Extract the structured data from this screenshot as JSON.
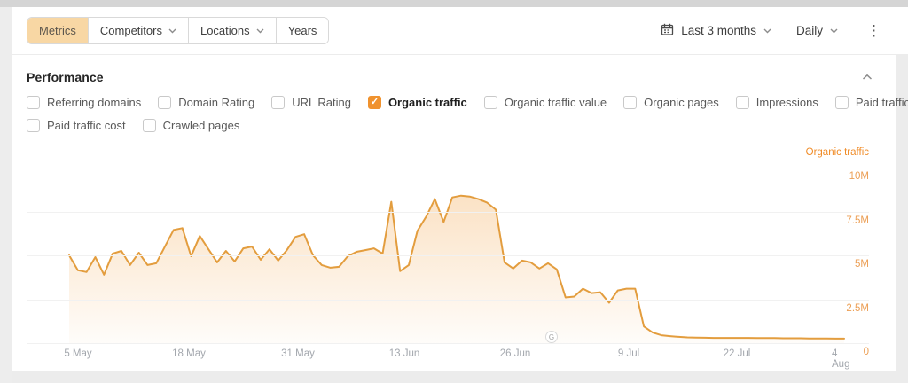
{
  "toolbar": {
    "tabs": [
      {
        "label": "Metrics",
        "active": true,
        "dropdown": false
      },
      {
        "label": "Competitors",
        "active": false,
        "dropdown": true
      },
      {
        "label": "Locations",
        "active": false,
        "dropdown": true
      },
      {
        "label": "Years",
        "active": false,
        "dropdown": false
      }
    ],
    "date_range_label": "Last 3 months",
    "granularity_label": "Daily"
  },
  "performance": {
    "title": "Performance",
    "metrics_rows": [
      [
        {
          "label": "Referring domains",
          "checked": false
        },
        {
          "label": "Domain Rating",
          "checked": false
        },
        {
          "label": "URL Rating",
          "checked": false
        },
        {
          "label": "Organic traffic",
          "checked": true
        },
        {
          "label": "Organic traffic value",
          "checked": false
        },
        {
          "label": "Organic pages",
          "checked": false
        },
        {
          "label": "Impressions",
          "checked": false
        },
        {
          "label": "Paid traffic",
          "checked": false
        }
      ],
      [
        {
          "label": "Paid traffic cost",
          "checked": false
        },
        {
          "label": "Crawled pages",
          "checked": false
        }
      ]
    ]
  },
  "chart_data": {
    "type": "area",
    "title": "Organic traffic",
    "legend": "Organic traffic",
    "unit": "millions",
    "ylim": [
      0,
      10
    ],
    "y_tick_labels": [
      "10M",
      "7.5M",
      "5M",
      "2.5M",
      "0"
    ],
    "x_tick_labels": [
      "5 May",
      "18 May",
      "31 May",
      "13 Jun",
      "26 Jun",
      "9 Jul",
      "22 Jul",
      "4 Aug"
    ],
    "x_tick_pos": [
      58,
      183,
      306,
      426,
      551,
      679,
      801,
      922
    ],
    "grid": "horizontal",
    "legend_position": "top-right",
    "annotation": {
      "symbol": "G",
      "meaning": "google-update-marker",
      "near_date": "29 Jun"
    },
    "values_millions": [
      5.0,
      4.15,
      4.05,
      4.9,
      3.9,
      5.1,
      5.25,
      4.45,
      5.15,
      4.45,
      4.55,
      5.5,
      6.45,
      6.55,
      4.95,
      6.1,
      5.35,
      4.6,
      5.25,
      4.65,
      5.4,
      5.5,
      4.75,
      5.35,
      4.7,
      5.3,
      6.05,
      6.2,
      5.0,
      4.45,
      4.3,
      4.35,
      4.95,
      5.2,
      5.3,
      5.4,
      5.1,
      8.05,
      4.1,
      4.45,
      6.4,
      7.2,
      8.2,
      6.9,
      8.3,
      8.4,
      8.35,
      8.2,
      8.0,
      7.6,
      4.6,
      4.25,
      4.7,
      4.6,
      4.25,
      4.55,
      4.2,
      2.6,
      2.65,
      3.1,
      2.85,
      2.9,
      2.3,
      3.0,
      3.1,
      3.1,
      0.95,
      0.6,
      0.45,
      0.4,
      0.36,
      0.33,
      0.32,
      0.31,
      0.3,
      0.3,
      0.3,
      0.3,
      0.3,
      0.29,
      0.29,
      0.29,
      0.28,
      0.28,
      0.28,
      0.27,
      0.27,
      0.27,
      0.26,
      0.26
    ],
    "colors": {
      "line": "#e39d3e",
      "fill_top": "rgba(242,166,77,0.38)",
      "fill_bottom": "rgba(242,166,77,0.03)",
      "axis_labels": "#ec9f55",
      "legend": "#f08c28"
    }
  }
}
